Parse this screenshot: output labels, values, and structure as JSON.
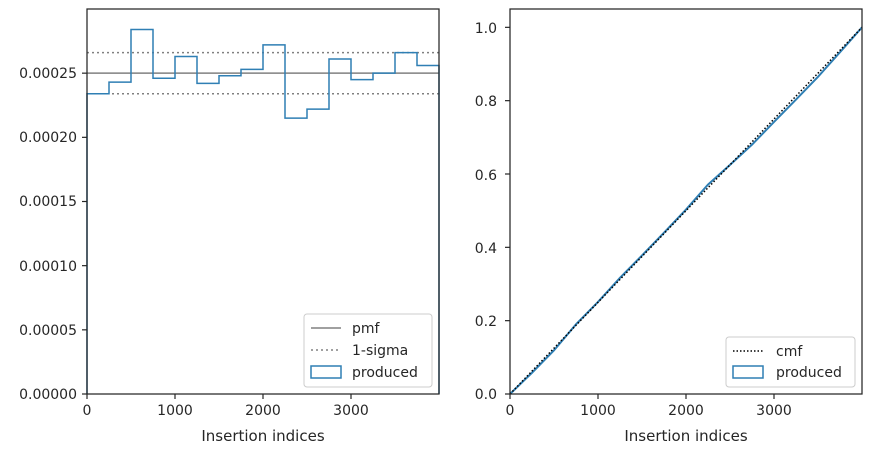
{
  "colors": {
    "produced": "#2f7fb4",
    "pmf": "#808080",
    "sigma": "#808080",
    "cmf": "#000000",
    "axes": "#262626"
  },
  "chart_data": [
    {
      "type": "step",
      "xlabel": "Insertion indices",
      "ylabel": "",
      "xlim": [
        0,
        4000
      ],
      "ylim": [
        0,
        0.0003
      ],
      "xticks": [
        0,
        1000,
        2000,
        3000
      ],
      "xtick_labels": [
        "0",
        "1000",
        "2000",
        "3000"
      ],
      "yticks": [
        0,
        5e-05,
        0.0001,
        0.00015,
        0.0002,
        0.00025
      ],
      "ytick_labels": [
        "0.00000",
        "0.00005",
        "0.00010",
        "0.00015",
        "0.00020",
        "0.00025"
      ],
      "legend_position": "lower-right",
      "pmf": {
        "label": "pmf",
        "value": 0.00025
      },
      "sigma": {
        "label": "1-sigma",
        "values": [
          0.000234,
          0.000266
        ]
      },
      "produced": {
        "label": "produced",
        "bin_edges": [
          0,
          250,
          500,
          750,
          1000,
          1250,
          1500,
          1750,
          2000,
          2250,
          2500,
          2750,
          3000,
          3250,
          3500,
          3750,
          4000
        ],
        "values": [
          0.000234,
          0.000243,
          0.000284,
          0.000246,
          0.000263,
          0.000242,
          0.000248,
          0.000253,
          0.000272,
          0.000215,
          0.000222,
          0.000261,
          0.000245,
          0.00025,
          0.000266,
          0.000256
        ]
      }
    },
    {
      "type": "line",
      "xlabel": "Insertion indices",
      "ylabel": "",
      "xlim": [
        0,
        4000
      ],
      "ylim": [
        0,
        1.05
      ],
      "xticks": [
        0,
        1000,
        2000,
        3000
      ],
      "xtick_labels": [
        "0",
        "1000",
        "2000",
        "3000"
      ],
      "yticks": [
        0,
        0.2,
        0.4,
        0.6,
        0.8,
        1.0
      ],
      "ytick_labels": [
        "0.0",
        "0.2",
        "0.4",
        "0.6",
        "0.8",
        "1.0"
      ],
      "legend_position": "lower-right",
      "cmf": {
        "label": "cmf",
        "x": [
          0,
          4000
        ],
        "y": [
          0,
          1
        ]
      },
      "produced": {
        "label": "produced",
        "x": [
          0,
          250,
          500,
          750,
          1000,
          1250,
          1500,
          1750,
          2000,
          2250,
          2500,
          2750,
          3000,
          3250,
          3500,
          3750,
          4000
        ],
        "y": [
          0,
          0.058,
          0.119,
          0.19,
          0.251,
          0.317,
          0.378,
          0.44,
          0.503,
          0.571,
          0.625,
          0.68,
          0.742,
          0.803,
          0.865,
          0.932,
          1.0
        ]
      }
    }
  ]
}
